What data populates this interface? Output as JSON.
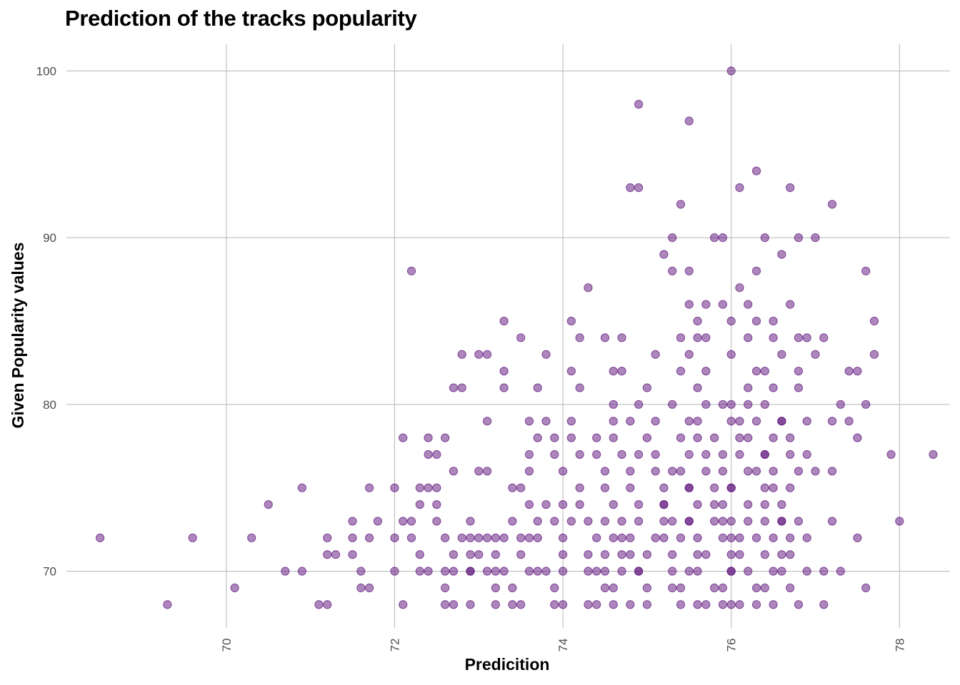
{
  "chart_data": {
    "type": "scatter",
    "title": "Prediction of the tracks popularity",
    "xlabel": "Predicition",
    "ylabel": "Given Popularity values",
    "xlim": [
      68.1,
      78.6
    ],
    "ylim": [
      66.6,
      101.6
    ],
    "x_ticks": [
      70,
      72,
      74,
      76,
      78
    ],
    "y_ticks": [
      70,
      80,
      90,
      100
    ],
    "grid": true,
    "point_color": "#5c0f7a",
    "points": [
      [
        68.5,
        72
      ],
      [
        69.3,
        68
      ],
      [
        69.6,
        72
      ],
      [
        70.1,
        69
      ],
      [
        70.3,
        72
      ],
      [
        70.5,
        74
      ],
      [
        70.7,
        70
      ],
      [
        70.9,
        75
      ],
      [
        70.9,
        70
      ],
      [
        71.1,
        68
      ],
      [
        71.2,
        68
      ],
      [
        71.2,
        72
      ],
      [
        71.2,
        71
      ],
      [
        71.3,
        71
      ],
      [
        71.5,
        73
      ],
      [
        71.5,
        71
      ],
      [
        71.5,
        72
      ],
      [
        71.6,
        70
      ],
      [
        71.6,
        69
      ],
      [
        71.7,
        72
      ],
      [
        71.7,
        75
      ],
      [
        71.7,
        69
      ],
      [
        71.8,
        73
      ],
      [
        72.0,
        72
      ],
      [
        72.0,
        75
      ],
      [
        72.0,
        70
      ],
      [
        72.1,
        78
      ],
      [
        72.1,
        73
      ],
      [
        72.1,
        68
      ],
      [
        72.2,
        72
      ],
      [
        72.2,
        73
      ],
      [
        72.2,
        88
      ],
      [
        72.3,
        70
      ],
      [
        72.3,
        74
      ],
      [
        72.3,
        75
      ],
      [
        72.4,
        77
      ],
      [
        72.4,
        75
      ],
      [
        72.4,
        78
      ],
      [
        72.5,
        77
      ],
      [
        72.5,
        75
      ],
      [
        72.5,
        73
      ],
      [
        72.5,
        74
      ],
      [
        72.6,
        70
      ],
      [
        72.6,
        78
      ],
      [
        72.6,
        69
      ],
      [
        72.6,
        68
      ],
      [
        72.7,
        70
      ],
      [
        72.7,
        76
      ],
      [
        72.7,
        68
      ],
      [
        72.7,
        81
      ],
      [
        72.8,
        81
      ],
      [
        72.8,
        83
      ],
      [
        72.9,
        72
      ],
      [
        72.9,
        70
      ],
      [
        72.9,
        71
      ],
      [
        72.9,
        73
      ],
      [
        72.9,
        68
      ],
      [
        73.0,
        72
      ],
      [
        73.0,
        76
      ],
      [
        73.0,
        71
      ],
      [
        73.0,
        83
      ],
      [
        73.1,
        76
      ],
      [
        73.1,
        72
      ],
      [
        73.1,
        83
      ],
      [
        73.1,
        79
      ],
      [
        73.2,
        70
      ],
      [
        73.2,
        72
      ],
      [
        73.2,
        69
      ],
      [
        73.2,
        68
      ],
      [
        73.3,
        82
      ],
      [
        73.3,
        81
      ],
      [
        73.3,
        85
      ],
      [
        73.3,
        72
      ],
      [
        73.4,
        75
      ],
      [
        73.4,
        69
      ],
      [
        73.4,
        68
      ],
      [
        73.5,
        71
      ],
      [
        73.5,
        84
      ],
      [
        73.5,
        72
      ],
      [
        73.5,
        68
      ],
      [
        73.6,
        70
      ],
      [
        73.6,
        77
      ],
      [
        73.6,
        76
      ],
      [
        73.6,
        74
      ],
      [
        73.6,
        72
      ],
      [
        73.7,
        81
      ],
      [
        73.7,
        73
      ],
      [
        73.7,
        70
      ],
      [
        73.7,
        72
      ],
      [
        73.8,
        83
      ],
      [
        73.8,
        74
      ],
      [
        73.8,
        70
      ],
      [
        73.9,
        73
      ],
      [
        73.9,
        69
      ],
      [
        73.9,
        68
      ],
      [
        74.0,
        72
      ],
      [
        74.0,
        70
      ],
      [
        74.0,
        71
      ],
      [
        74.0,
        68
      ],
      [
        74.1,
        73
      ],
      [
        74.1,
        79
      ],
      [
        74.1,
        78
      ],
      [
        74.2,
        75
      ],
      [
        74.2,
        74
      ],
      [
        74.2,
        77
      ],
      [
        74.2,
        81
      ],
      [
        74.3,
        73
      ],
      [
        74.3,
        70
      ],
      [
        74.3,
        68
      ],
      [
        74.3,
        87
      ],
      [
        74.3,
        71
      ],
      [
        74.4,
        72
      ],
      [
        74.4,
        70
      ],
      [
        74.4,
        78
      ],
      [
        74.4,
        77
      ],
      [
        74.4,
        68
      ],
      [
        74.5,
        73
      ],
      [
        74.5,
        70
      ],
      [
        74.5,
        75
      ],
      [
        74.5,
        71
      ],
      [
        74.5,
        84
      ],
      [
        74.6,
        80
      ],
      [
        74.6,
        79
      ],
      [
        74.6,
        72
      ],
      [
        74.6,
        69
      ],
      [
        74.6,
        78
      ],
      [
        74.7,
        77
      ],
      [
        74.7,
        82
      ],
      [
        74.7,
        70
      ],
      [
        74.7,
        71
      ],
      [
        74.7,
        73
      ],
      [
        74.8,
        68
      ],
      [
        74.8,
        75
      ],
      [
        74.8,
        79
      ],
      [
        74.8,
        72
      ],
      [
        74.8,
        76
      ],
      [
        74.9,
        80
      ],
      [
        74.9,
        77
      ],
      [
        74.9,
        70
      ],
      [
        74.9,
        74
      ],
      [
        74.9,
        73
      ],
      [
        75.0,
        68
      ],
      [
        75.0,
        71
      ],
      [
        75.0,
        69
      ],
      [
        75.0,
        81
      ],
      [
        75.0,
        78
      ],
      [
        75.1,
        83
      ],
      [
        75.1,
        79
      ],
      [
        75.1,
        76
      ],
      [
        75.1,
        77
      ],
      [
        75.1,
        72
      ],
      [
        75.2,
        89
      ],
      [
        75.2,
        73
      ],
      [
        75.2,
        74
      ],
      [
        75.2,
        75
      ],
      [
        75.2,
        72
      ],
      [
        75.3,
        71
      ],
      [
        75.3,
        80
      ],
      [
        75.3,
        70
      ],
      [
        75.3,
        69
      ],
      [
        75.4,
        68
      ],
      [
        75.4,
        76
      ],
      [
        75.4,
        78
      ],
      [
        75.4,
        82
      ],
      [
        75.4,
        84
      ],
      [
        75.5,
        86
      ],
      [
        75.5,
        73
      ],
      [
        75.5,
        75
      ],
      [
        75.5,
        73
      ],
      [
        75.5,
        88
      ],
      [
        75.6,
        79
      ],
      [
        75.6,
        72
      ],
      [
        75.6,
        74
      ],
      [
        75.6,
        70
      ],
      [
        75.7,
        71
      ],
      [
        75.7,
        68
      ],
      [
        75.7,
        77
      ],
      [
        75.7,
        84
      ],
      [
        75.7,
        86
      ],
      [
        75.8,
        90
      ],
      [
        75.8,
        75
      ],
      [
        75.8,
        73
      ],
      [
        75.8,
        69
      ],
      [
        75.8,
        78
      ],
      [
        75.9,
        80
      ],
      [
        75.9,
        72
      ],
      [
        75.9,
        74
      ],
      [
        75.9,
        68
      ],
      [
        75.9,
        76
      ],
      [
        76.0,
        71
      ],
      [
        76.0,
        79
      ],
      [
        76.0,
        70
      ],
      [
        76.0,
        73
      ],
      [
        76.0,
        75
      ],
      [
        76.1,
        77
      ],
      [
        76.1,
        87
      ],
      [
        76.1,
        68
      ],
      [
        76.1,
        72
      ],
      [
        76.1,
        78
      ],
      [
        76.2,
        74
      ],
      [
        76.2,
        73
      ],
      [
        76.2,
        76
      ],
      [
        76.2,
        80
      ],
      [
        76.2,
        70
      ],
      [
        76.3,
        85
      ],
      [
        76.3,
        79
      ],
      [
        76.3,
        72
      ],
      [
        76.3,
        69
      ],
      [
        76.3,
        88
      ],
      [
        76.4,
        73
      ],
      [
        76.4,
        75
      ],
      [
        76.4,
        77
      ],
      [
        76.4,
        71
      ],
      [
        76.4,
        82
      ],
      [
        76.5,
        76
      ],
      [
        76.5,
        78
      ],
      [
        76.5,
        72
      ],
      [
        76.5,
        68
      ],
      [
        76.5,
        84
      ],
      [
        76.6,
        74
      ],
      [
        76.6,
        79
      ],
      [
        76.6,
        70
      ],
      [
        76.6,
        89
      ],
      [
        76.6,
        73
      ],
      [
        76.7,
        77
      ],
      [
        76.7,
        71
      ],
      [
        76.7,
        75
      ],
      [
        76.7,
        69
      ],
      [
        76.8,
        81
      ],
      [
        76.8,
        76
      ],
      [
        76.8,
        73
      ],
      [
        76.8,
        68
      ],
      [
        76.8,
        84
      ],
      [
        76.9,
        77
      ],
      [
        76.9,
        70
      ],
      [
        76.9,
        72
      ],
      [
        76.9,
        79
      ],
      [
        77.0,
        83
      ],
      [
        77.0,
        90
      ],
      [
        77.0,
        76
      ],
      [
        77.1,
        70
      ],
      [
        77.1,
        84
      ],
      [
        77.1,
        68
      ],
      [
        77.2,
        73
      ],
      [
        77.2,
        79
      ],
      [
        77.2,
        92
      ],
      [
        77.2,
        76
      ],
      [
        77.3,
        80
      ],
      [
        77.3,
        70
      ],
      [
        77.4,
        82
      ],
      [
        77.4,
        79
      ],
      [
        77.5,
        78
      ],
      [
        77.5,
        72
      ],
      [
        77.5,
        82
      ],
      [
        77.6,
        88
      ],
      [
        77.6,
        69
      ],
      [
        77.6,
        80
      ],
      [
        77.7,
        85
      ],
      [
        77.7,
        83
      ],
      [
        77.9,
        77
      ],
      [
        78.0,
        73
      ],
      [
        78.4,
        77
      ],
      [
        74.9,
        98
      ],
      [
        75.5,
        97
      ],
      [
        76.0,
        100
      ],
      [
        74.9,
        93
      ],
      [
        74.8,
        93
      ],
      [
        76.1,
        93
      ],
      [
        76.3,
        94
      ],
      [
        76.7,
        93
      ],
      [
        75.4,
        92
      ],
      [
        75.3,
        90
      ],
      [
        75.9,
        90
      ],
      [
        76.4,
        90
      ],
      [
        76.8,
        90
      ],
      [
        75.3,
        88
      ],
      [
        75.9,
        86
      ],
      [
        76.2,
        86
      ],
      [
        76.7,
        86
      ],
      [
        75.6,
        85
      ],
      [
        76.0,
        85
      ],
      [
        76.5,
        85
      ],
      [
        75.6,
        84
      ],
      [
        76.2,
        84
      ],
      [
        76.9,
        84
      ],
      [
        75.5,
        83
      ],
      [
        76.0,
        83
      ],
      [
        76.6,
        83
      ],
      [
        75.7,
        82
      ],
      [
        76.3,
        82
      ],
      [
        76.8,
        82
      ],
      [
        75.6,
        81
      ],
      [
        76.2,
        81
      ],
      [
        76.5,
        81
      ],
      [
        75.7,
        80
      ],
      [
        76.0,
        80
      ],
      [
        76.4,
        80
      ],
      [
        75.5,
        79
      ],
      [
        76.1,
        79
      ],
      [
        76.6,
        79
      ],
      [
        75.6,
        78
      ],
      [
        76.2,
        78
      ],
      [
        76.7,
        78
      ],
      [
        75.5,
        77
      ],
      [
        75.9,
        77
      ],
      [
        76.4,
        77
      ],
      [
        75.3,
        76
      ],
      [
        75.7,
        76
      ],
      [
        76.3,
        76
      ],
      [
        75.5,
        75
      ],
      [
        76.0,
        75
      ],
      [
        76.5,
        75
      ],
      [
        75.2,
        74
      ],
      [
        75.8,
        74
      ],
      [
        76.4,
        74
      ],
      [
        75.3,
        73
      ],
      [
        75.9,
        73
      ],
      [
        76.6,
        73
      ],
      [
        75.4,
        72
      ],
      [
        76.0,
        72
      ],
      [
        76.7,
        72
      ],
      [
        75.6,
        71
      ],
      [
        76.1,
        71
      ],
      [
        76.6,
        71
      ],
      [
        75.5,
        70
      ],
      [
        76.0,
        70
      ],
      [
        76.5,
        70
      ],
      [
        75.4,
        69
      ],
      [
        75.9,
        69
      ],
      [
        76.4,
        69
      ],
      [
        75.6,
        68
      ],
      [
        76.0,
        68
      ],
      [
        76.3,
        68
      ],
      [
        74.6,
        82
      ],
      [
        74.7,
        84
      ],
      [
        74.5,
        76
      ],
      [
        74.6,
        74
      ],
      [
        74.7,
        72
      ],
      [
        74.8,
        71
      ],
      [
        74.9,
        70
      ],
      [
        74.5,
        69
      ],
      [
        74.6,
        68
      ],
      [
        74.1,
        82
      ],
      [
        74.1,
        85
      ],
      [
        74.2,
        84
      ],
      [
        74.0,
        76
      ],
      [
        74.0,
        74
      ],
      [
        73.8,
        79
      ],
      [
        73.9,
        77
      ],
      [
        73.9,
        78
      ],
      [
        73.6,
        79
      ],
      [
        73.7,
        78
      ],
      [
        73.5,
        75
      ],
      [
        73.4,
        73
      ],
      [
        73.3,
        70
      ],
      [
        73.2,
        71
      ],
      [
        73.1,
        70
      ],
      [
        72.9,
        70
      ],
      [
        72.8,
        72
      ],
      [
        72.7,
        71
      ],
      [
        72.6,
        72
      ],
      [
        72.4,
        70
      ],
      [
        72.3,
        71
      ]
    ]
  }
}
